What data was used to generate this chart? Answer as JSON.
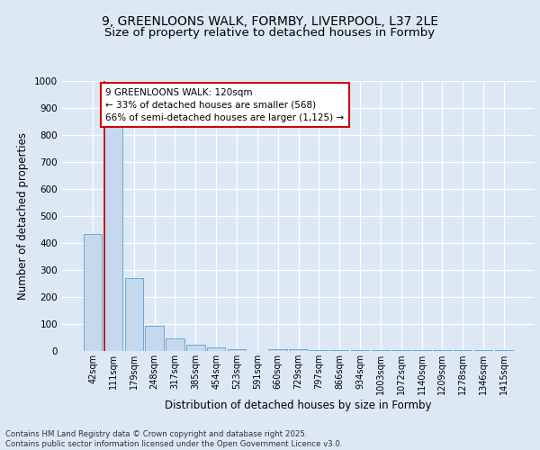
{
  "title_line1": "9, GREENLOONS WALK, FORMBY, LIVERPOOL, L37 2LE",
  "title_line2": "Size of property relative to detached houses in Formby",
  "xlabel": "Distribution of detached houses by size in Formby",
  "ylabel": "Number of detached properties",
  "bar_labels": [
    "42sqm",
    "111sqm",
    "179sqm",
    "248sqm",
    "317sqm",
    "385sqm",
    "454sqm",
    "523sqm",
    "591sqm",
    "660sqm",
    "729sqm",
    "797sqm",
    "866sqm",
    "934sqm",
    "1003sqm",
    "1072sqm",
    "1140sqm",
    "1209sqm",
    "1278sqm",
    "1346sqm",
    "1415sqm"
  ],
  "bar_values": [
    435,
    830,
    270,
    93,
    48,
    22,
    13,
    8,
    0,
    8,
    8,
    5,
    5,
    5,
    5,
    5,
    5,
    5,
    5,
    5,
    5
  ],
  "bar_color": "#c5d8ee",
  "bar_edge_color": "#6aaad4",
  "background_color": "#dde8f5",
  "grid_color": "#ffffff",
  "property_line_color": "#cc0000",
  "annotation_text": "9 GREENLOONS WALK: 120sqm\n← 33% of detached houses are smaller (568)\n66% of semi-detached houses are larger (1,125) →",
  "annotation_box_color": "#ffffff",
  "annotation_box_edge": "#cc0000",
  "ylim": [
    0,
    1000
  ],
  "yticks": [
    0,
    100,
    200,
    300,
    400,
    500,
    600,
    700,
    800,
    900,
    1000
  ],
  "footer_text": "Contains HM Land Registry data © Crown copyright and database right 2025.\nContains public sector information licensed under the Open Government Licence v3.0.",
  "title_fontsize": 10,
  "subtitle_fontsize": 9.5,
  "ylabel_fontsize": 8.5,
  "xlabel_fontsize": 8.5,
  "tick_fontsize": 7,
  "annotation_fontsize": 7.5
}
